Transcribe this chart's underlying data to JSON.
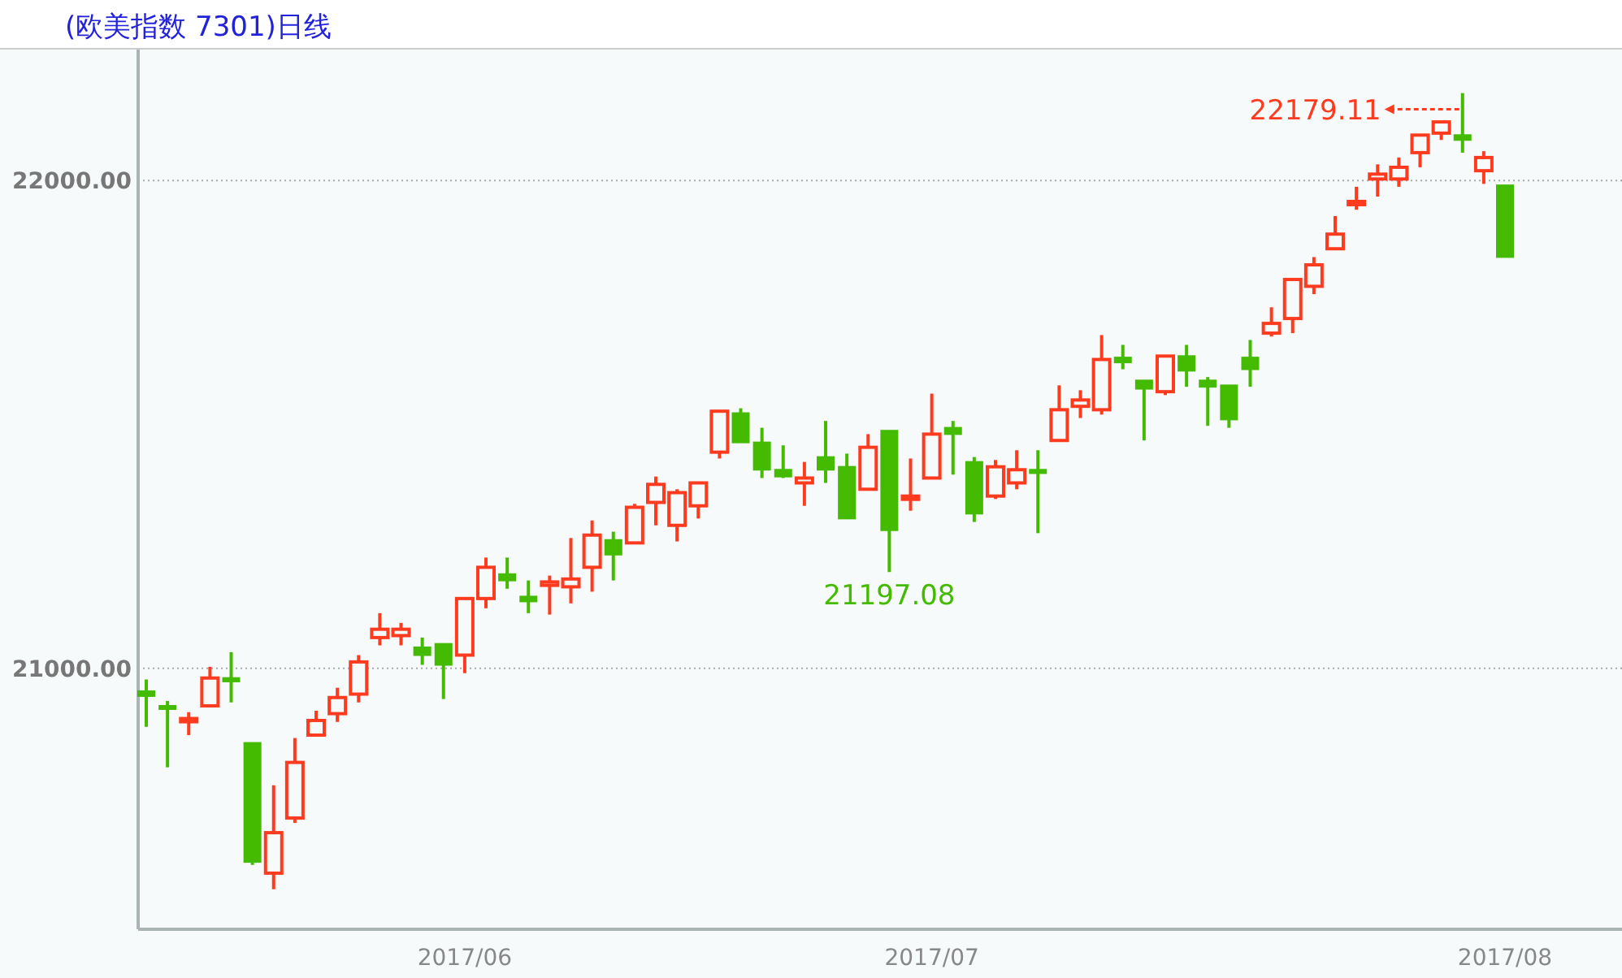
{
  "chart_data": {
    "type": "candlestick",
    "title": "(欧美指数 7301)日线",
    "categories": [
      null,
      null,
      null,
      null,
      null,
      null,
      null,
      null,
      null,
      null,
      null,
      null,
      null,
      null,
      null,
      "2017/06",
      null,
      null,
      null,
      null,
      null,
      null,
      null,
      null,
      null,
      null,
      null,
      null,
      null,
      null,
      null,
      null,
      null,
      null,
      null,
      null,
      null,
      "2017/07",
      null,
      null,
      null,
      null,
      null,
      null,
      null,
      null,
      null,
      null,
      null,
      null,
      null,
      null,
      null,
      null,
      null,
      null,
      null,
      null,
      null,
      null,
      null,
      null,
      null,
      null,
      "2017/08"
    ],
    "ohlc": [
      [
        20953,
        20977,
        20880,
        20943
      ],
      [
        20923,
        20933,
        20797,
        20917
      ],
      [
        20893,
        20910,
        20863,
        20897
      ],
      [
        20923,
        21003,
        20923,
        20980
      ],
      [
        20980,
        21033,
        20930,
        20973
      ],
      [
        20847,
        20847,
        20597,
        20603
      ],
      [
        20580,
        20760,
        20547,
        20663
      ],
      [
        20693,
        20857,
        20683,
        20807
      ],
      [
        20863,
        20913,
        20860,
        20893
      ],
      [
        20907,
        20960,
        20890,
        20940
      ],
      [
        20947,
        21027,
        20930,
        21013
      ],
      [
        21063,
        21113,
        21047,
        21080
      ],
      [
        21067,
        21093,
        21047,
        21080
      ],
      [
        21043,
        21063,
        21007,
        21027
      ],
      [
        21050,
        21050,
        20937,
        21007
      ],
      [
        21027,
        21143,
        20990,
        21143
      ],
      [
        21143,
        21227,
        21123,
        21207
      ],
      [
        21193,
        21227,
        21163,
        21180
      ],
      [
        21147,
        21180,
        21113,
        21137
      ],
      [
        21170,
        21190,
        21110,
        21177
      ],
      [
        21167,
        21267,
        21133,
        21183
      ],
      [
        21207,
        21303,
        21157,
        21273
      ],
      [
        21263,
        21280,
        21180,
        21233
      ],
      [
        21257,
        21337,
        21257,
        21330
      ],
      [
        21340,
        21393,
        21293,
        21377
      ],
      [
        21293,
        21367,
        21260,
        21360
      ],
      [
        21333,
        21380,
        21307,
        21380
      ],
      [
        21443,
        21527,
        21430,
        21527
      ],
      [
        21523,
        21533,
        21463,
        21463
      ],
      [
        21463,
        21493,
        21390,
        21407
      ],
      [
        21407,
        21457,
        21390,
        21393
      ],
      [
        21380,
        21423,
        21333,
        21390
      ],
      [
        21433,
        21507,
        21380,
        21407
      ],
      [
        21413,
        21440,
        21307,
        21307
      ],
      [
        21367,
        21480,
        21367,
        21453
      ],
      [
        21487,
        21487,
        21197.08,
        21283
      ],
      [
        21347,
        21430,
        21323,
        21353
      ],
      [
        21390,
        21563,
        21390,
        21480
      ],
      [
        21493,
        21507,
        21397,
        21480
      ],
      [
        21423,
        21433,
        21300,
        21317
      ],
      [
        21353,
        21427,
        21347,
        21413
      ],
      [
        21380,
        21447,
        21367,
        21407
      ],
      [
        21407,
        21447,
        21277,
        21400
      ],
      [
        21467,
        21580,
        21467,
        21530
      ],
      [
        21537,
        21570,
        21513,
        21550
      ],
      [
        21530,
        21683,
        21520,
        21633
      ],
      [
        21637,
        21663,
        21613,
        21627
      ],
      [
        21590,
        21590,
        21467,
        21573
      ],
      [
        21567,
        21640,
        21560,
        21640
      ],
      [
        21640,
        21663,
        21577,
        21610
      ],
      [
        21590,
        21597,
        21497,
        21577
      ],
      [
        21580,
        21580,
        21493,
        21510
      ],
      [
        21637,
        21673,
        21577,
        21613
      ],
      [
        21687,
        21740,
        21680,
        21707
      ],
      [
        21717,
        21797,
        21687,
        21797
      ],
      [
        21783,
        21843,
        21767,
        21827
      ],
      [
        21860,
        21927,
        21857,
        21890
      ],
      [
        21953,
        21987,
        21940,
        21957
      ],
      [
        22003,
        22033,
        21967,
        22013
      ],
      [
        22003,
        22047,
        21987,
        22027
      ],
      [
        22057,
        22093,
        22027,
        22093
      ],
      [
        22097,
        22120,
        22083,
        22120
      ],
      [
        22093,
        22179.11,
        22057,
        22083
      ],
      [
        22020,
        22060,
        21993,
        22047
      ],
      [
        21990,
        21990,
        21843,
        21843
      ]
    ],
    "colors": [
      "#44bb00",
      "#44bb00",
      "#ff3b1f",
      "#ff3b1f",
      "#44bb00",
      "#44bb00",
      "#ff3b1f",
      "#ff3b1f",
      "#ff3b1f",
      "#ff3b1f",
      "#ff3b1f",
      "#ff3b1f",
      "#ff3b1f",
      "#44bb00",
      "#44bb00",
      "#ff3b1f",
      "#ff3b1f",
      "#44bb00",
      "#44bb00",
      "#ff3b1f",
      "#ff3b1f",
      "#ff3b1f",
      "#44bb00",
      "#ff3b1f",
      "#ff3b1f",
      "#ff3b1f",
      "#ff3b1f",
      "#ff3b1f",
      "#44bb00",
      "#44bb00",
      "#44bb00",
      "#ff3b1f",
      "#44bb00",
      "#44bb00",
      "#ff3b1f",
      "#44bb00",
      "#ff3b1f",
      "#ff3b1f",
      "#44bb00",
      "#44bb00",
      "#ff3b1f",
      "#ff3b1f",
      "#44bb00",
      "#ff3b1f",
      "#ff3b1f",
      "#ff3b1f",
      "#44bb00",
      "#44bb00",
      "#ff3b1f",
      "#44bb00",
      "#44bb00",
      "#44bb00",
      "#44bb00",
      "#ff3b1f",
      "#ff3b1f",
      "#ff3b1f",
      "#ff3b1f",
      "#ff3b1f",
      "#ff3b1f",
      "#ff3b1f",
      "#ff3b1f",
      "#ff3b1f",
      "#44bb00",
      "#ff3b1f",
      "#44bb00"
    ],
    "ylim": [
      20465,
      22270
    ],
    "yticks": [
      {
        "value": 21000,
        "label": "21000.00"
      },
      {
        "value": 22000,
        "label": "22000.00"
      }
    ],
    "grid": "y",
    "annotations": [
      "22179.11",
      {
        "text": "21197.08",
        "y": 21197.08
      }
    ]
  }
}
